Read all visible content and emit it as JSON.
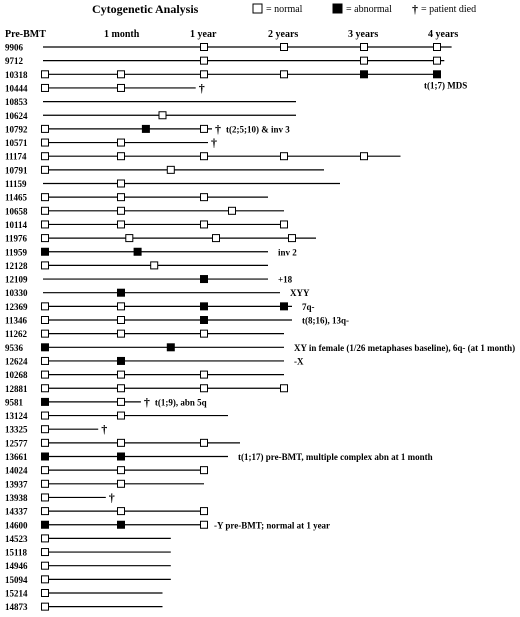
{
  "title": "Cytogenetic Analysis",
  "legend": {
    "normal": "= normal",
    "abnormal": "= abnormal",
    "died": "= patient died",
    "dagger": "†"
  },
  "time_labels": [
    "Pre-BMT",
    "1 month",
    "1 year",
    "2 years",
    "3 years",
    "4 years"
  ],
  "chart_data": {
    "type": "timeline",
    "time_axis_years": [
      0,
      0.0833,
      1,
      2,
      3,
      4
    ],
    "patients": [
      {
        "id": "9906",
        "end": 4.2,
        "marks": [
          {
            "t": 1,
            "s": "n"
          },
          {
            "t": 2,
            "s": "n"
          },
          {
            "t": 3,
            "s": "n"
          },
          {
            "t": 4,
            "s": "n"
          }
        ]
      },
      {
        "id": "9712",
        "end": 4.1,
        "marks": [
          {
            "t": 1,
            "s": "n"
          },
          {
            "t": 3,
            "s": "n"
          },
          {
            "t": 4,
            "s": "n"
          }
        ]
      },
      {
        "id": "10318",
        "end": 4.0,
        "marks": [
          {
            "t": 0,
            "s": "n"
          },
          {
            "t": 0.5,
            "s": "n"
          },
          {
            "t": 1,
            "s": "n"
          },
          {
            "t": 2,
            "s": "n"
          },
          {
            "t": 3,
            "s": "a"
          },
          {
            "t": 4,
            "s": "a"
          }
        ],
        "note": "t(1;7) MDS"
      },
      {
        "id": "10444",
        "end": 0.95,
        "died": true,
        "marks": [
          {
            "t": 0,
            "s": "n"
          },
          {
            "t": 0.5,
            "s": "n"
          }
        ]
      },
      {
        "id": "10853",
        "end": 2.15,
        "marks": []
      },
      {
        "id": "10624",
        "end": 2.15,
        "marks": [
          {
            "t": 0.75,
            "s": "n"
          }
        ]
      },
      {
        "id": "10792",
        "end": 1.1,
        "died": true,
        "marks": [
          {
            "t": 0,
            "s": "n"
          },
          {
            "t": 0.65,
            "s": "a"
          },
          {
            "t": 1,
            "s": "n"
          }
        ],
        "note": "t(2;5;10) & inv 3"
      },
      {
        "id": "10571",
        "end": 1.05,
        "died": true,
        "marks": [
          {
            "t": 0,
            "s": "n"
          },
          {
            "t": 0.5,
            "s": "n"
          }
        ]
      },
      {
        "id": "11174",
        "end": 3.5,
        "marks": [
          {
            "t": 0,
            "s": "n"
          },
          {
            "t": 0.5,
            "s": "n"
          },
          {
            "t": 1,
            "s": "n"
          },
          {
            "t": 2,
            "s": "n"
          },
          {
            "t": 3,
            "s": "n"
          }
        ]
      },
      {
        "id": "10791",
        "end": 2.5,
        "marks": [
          {
            "t": 0,
            "s": "n"
          },
          {
            "t": 0.8,
            "s": "n"
          }
        ]
      },
      {
        "id": "11159",
        "end": 2.7,
        "marks": [
          {
            "t": 0.5,
            "s": "n"
          }
        ]
      },
      {
        "id": "11465",
        "end": 1.8,
        "marks": [
          {
            "t": 0,
            "s": "n"
          },
          {
            "t": 0.5,
            "s": "n"
          },
          {
            "t": 1,
            "s": "n"
          }
        ]
      },
      {
        "id": "10658",
        "end": 2.0,
        "marks": [
          {
            "t": 0,
            "s": "n"
          },
          {
            "t": 0.5,
            "s": "n"
          },
          {
            "t": 1.35,
            "s": "n"
          }
        ]
      },
      {
        "id": "10114",
        "end": 2.0,
        "marks": [
          {
            "t": 0,
            "s": "n"
          },
          {
            "t": 0.5,
            "s": "n"
          },
          {
            "t": 1,
            "s": "n"
          },
          {
            "t": 2,
            "s": "n"
          }
        ]
      },
      {
        "id": "11976",
        "end": 2.4,
        "marks": [
          {
            "t": 0,
            "s": "n"
          },
          {
            "t": 0.55,
            "s": "n"
          },
          {
            "t": 1.15,
            "s": "n"
          },
          {
            "t": 2.1,
            "s": "n"
          }
        ]
      },
      {
        "id": "11959",
        "end": 1.8,
        "marks": [
          {
            "t": 0,
            "s": "a"
          },
          {
            "t": 0.6,
            "s": "a"
          }
        ],
        "note": "inv 2"
      },
      {
        "id": "12128",
        "end": 1.8,
        "marks": [
          {
            "t": 0,
            "s": "n"
          },
          {
            "t": 0.7,
            "s": "n"
          }
        ]
      },
      {
        "id": "12109",
        "end": 1.8,
        "marks": [
          {
            "t": 1,
            "s": "a"
          }
        ],
        "note": "+18"
      },
      {
        "id": "10330",
        "end": 1.95,
        "marks": [
          {
            "t": 0.5,
            "s": "a"
          }
        ],
        "note": "XYY"
      },
      {
        "id": "12369",
        "end": 2.1,
        "marks": [
          {
            "t": 0,
            "s": "n"
          },
          {
            "t": 0.5,
            "s": "n"
          },
          {
            "t": 1,
            "s": "a"
          },
          {
            "t": 2,
            "s": "a"
          }
        ],
        "note": "7q-"
      },
      {
        "id": "11346",
        "end": 2.1,
        "marks": [
          {
            "t": 0,
            "s": "n"
          },
          {
            "t": 0.5,
            "s": "n"
          },
          {
            "t": 1,
            "s": "a"
          }
        ],
        "note": "t(8;16), 13q-"
      },
      {
        "id": "11262",
        "end": 2.0,
        "marks": [
          {
            "t": 0,
            "s": "n"
          },
          {
            "t": 0.5,
            "s": "n"
          },
          {
            "t": 1,
            "s": "n"
          }
        ]
      },
      {
        "id": "9536",
        "end": 2.0,
        "marks": [
          {
            "t": 0,
            "s": "a"
          },
          {
            "t": 0.8,
            "s": "a"
          }
        ],
        "note": "XY in female (1/26 metaphases baseline), 6q- (at 1 month)"
      },
      {
        "id": "12624",
        "end": 2.0,
        "marks": [
          {
            "t": 0,
            "s": "n"
          },
          {
            "t": 0.5,
            "s": "a"
          }
        ],
        "note": "-X"
      },
      {
        "id": "10268",
        "end": 2.0,
        "marks": [
          {
            "t": 0,
            "s": "n"
          },
          {
            "t": 0.5,
            "s": "n"
          },
          {
            "t": 1,
            "s": "n"
          }
        ]
      },
      {
        "id": "12881",
        "end": 2.0,
        "marks": [
          {
            "t": 0,
            "s": "n"
          },
          {
            "t": 0.5,
            "s": "n"
          },
          {
            "t": 1,
            "s": "n"
          },
          {
            "t": 2,
            "s": "n"
          }
        ]
      },
      {
        "id": "9581",
        "end": 0.62,
        "died": true,
        "marks": [
          {
            "t": 0,
            "s": "a"
          },
          {
            "t": 0.5,
            "s": "n"
          }
        ],
        "note": "t(1;9), abn 5q"
      },
      {
        "id": "13124",
        "end": 1.3,
        "marks": [
          {
            "t": 0,
            "s": "n"
          },
          {
            "t": 0.5,
            "s": "n"
          }
        ]
      },
      {
        "id": "13325",
        "end": 0.35,
        "died": true,
        "marks": [
          {
            "t": 0,
            "s": "n"
          }
        ]
      },
      {
        "id": "12577",
        "end": 1.45,
        "marks": [
          {
            "t": 0,
            "s": "n"
          },
          {
            "t": 0.5,
            "s": "n"
          },
          {
            "t": 1,
            "s": "n"
          }
        ]
      },
      {
        "id": "13661",
        "end": 1.3,
        "marks": [
          {
            "t": 0,
            "s": "a"
          },
          {
            "t": 0.5,
            "s": "a"
          }
        ],
        "note": "t(1;17) pre-BMT, multiple complex abn at 1 month"
      },
      {
        "id": "14024",
        "end": 1.0,
        "marks": [
          {
            "t": 0,
            "s": "n"
          },
          {
            "t": 0.5,
            "s": "n"
          },
          {
            "t": 1,
            "s": "n"
          }
        ]
      },
      {
        "id": "13937",
        "end": 1.0,
        "marks": [
          {
            "t": 0,
            "s": "n"
          },
          {
            "t": 0.5,
            "s": "n"
          }
        ]
      },
      {
        "id": "13938",
        "end": 0.4,
        "died": true,
        "marks": [
          {
            "t": 0,
            "s": "n"
          }
        ]
      },
      {
        "id": "14337",
        "end": 1.0,
        "marks": [
          {
            "t": 0,
            "s": "n"
          },
          {
            "t": 0.5,
            "s": "n"
          },
          {
            "t": 1,
            "s": "n"
          }
        ]
      },
      {
        "id": "14600",
        "end": 1.0,
        "marks": [
          {
            "t": 0,
            "s": "a"
          },
          {
            "t": 0.5,
            "s": "a"
          },
          {
            "t": 1,
            "s": "n"
          }
        ],
        "note": "-Y pre-BMT; normal at 1 year"
      },
      {
        "id": "14523",
        "end": 0.8,
        "marks": [
          {
            "t": 0,
            "s": "n"
          }
        ]
      },
      {
        "id": "15118",
        "end": 0.8,
        "marks": [
          {
            "t": 0,
            "s": "n"
          }
        ]
      },
      {
        "id": "14946",
        "end": 0.8,
        "marks": [
          {
            "t": 0,
            "s": "n"
          }
        ]
      },
      {
        "id": "15094",
        "end": 0.8,
        "marks": [
          {
            "t": 0,
            "s": "n"
          }
        ]
      },
      {
        "id": "15214",
        "end": 0.75,
        "marks": [
          {
            "t": 0,
            "s": "n"
          }
        ]
      },
      {
        "id": "14873",
        "end": 0.75,
        "marks": [
          {
            "t": 0,
            "s": "n"
          }
        ]
      }
    ]
  }
}
